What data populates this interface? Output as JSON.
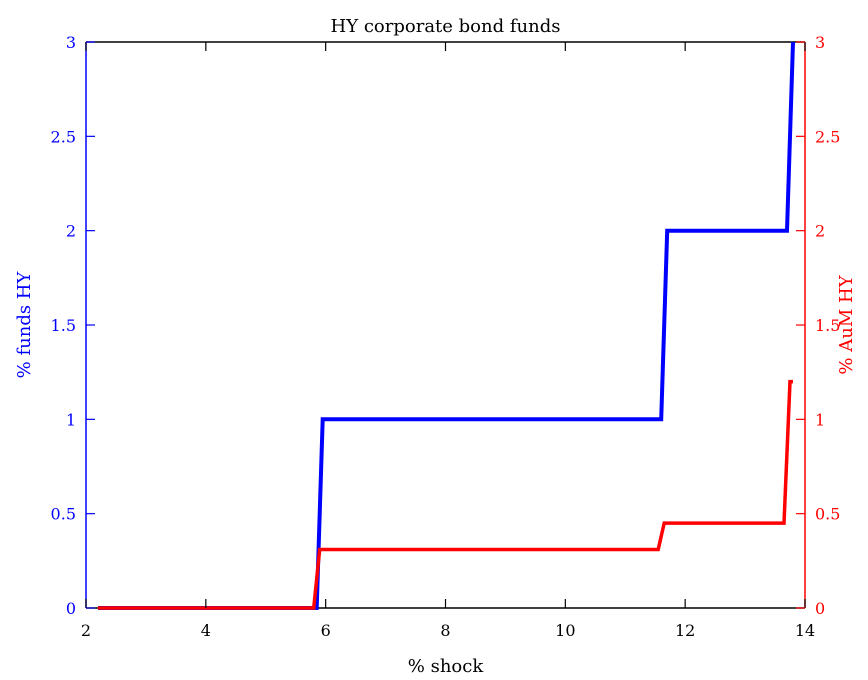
{
  "chart_data": {
    "type": "line",
    "title": "HY corporate bond funds",
    "xlabel": "% shock",
    "ylabel_left": "% funds HY",
    "ylabel_right": "% AuM HY",
    "xlim": [
      2,
      14
    ],
    "ylim_left": [
      0,
      3
    ],
    "ylim_right": [
      0,
      3
    ],
    "x_ticks": [
      "2",
      "4",
      "6",
      "8",
      "10",
      "12",
      "14"
    ],
    "y_ticks_left": [
      "0",
      "0.5",
      "1",
      "1.5",
      "2",
      "2.5",
      "3"
    ],
    "y_ticks_right": [
      "0",
      "0.5",
      "1",
      "1.5",
      "2",
      "2.5",
      "3"
    ],
    "colors": {
      "left": "#0000ff",
      "right": "#ff0000"
    },
    "grid": false,
    "series": [
      {
        "axis": "left",
        "x": [
          2.2,
          5.85,
          5.95,
          11.6,
          11.7,
          13.7,
          13.8
        ],
        "y": [
          0,
          0,
          1,
          1,
          2,
          2,
          3
        ]
      },
      {
        "axis": "right",
        "x": [
          2.2,
          5.8,
          5.9,
          11.55,
          11.65,
          13.65,
          13.75,
          13.8
        ],
        "y": [
          0,
          0,
          0.31,
          0.31,
          0.45,
          0.45,
          1.2,
          1.2
        ]
      }
    ]
  }
}
